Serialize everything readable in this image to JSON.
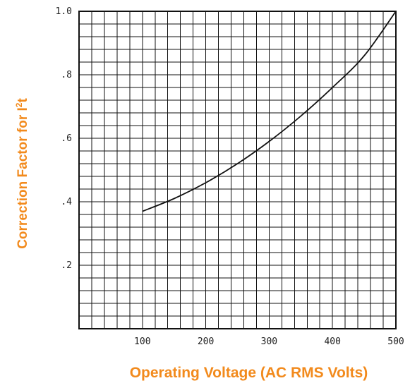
{
  "chart_data": {
    "type": "line",
    "title": "",
    "xlabel": "Operating Voltage (AC RMS Volts)",
    "ylabel_main": "Correction Factor for I",
    "ylabel_sup": "2",
    "ylabel_tail": "t",
    "xlim": [
      0,
      500
    ],
    "ylim": [
      0,
      1.0
    ],
    "x_ticks": [
      100,
      200,
      300,
      400,
      500
    ],
    "x_tick_labels": [
      "100",
      "200",
      "300",
      "400",
      "500"
    ],
    "y_ticks": [
      0.2,
      0.4,
      0.6,
      0.8,
      1.0
    ],
    "y_tick_labels": [
      ".2",
      ".4",
      ".6",
      ".8",
      "1.0"
    ],
    "grid": true,
    "x_minor_divisions": 25,
    "y_minor_divisions": 25,
    "series": [
      {
        "x": [
          100,
          150,
          200,
          250,
          300,
          350,
          400,
          450,
          500
        ],
        "y": [
          0.37,
          0.41,
          0.46,
          0.52,
          0.59,
          0.67,
          0.76,
          0.86,
          1.0
        ]
      }
    ]
  },
  "colors": {
    "accent": "#f28a1c",
    "line": "#111111"
  }
}
